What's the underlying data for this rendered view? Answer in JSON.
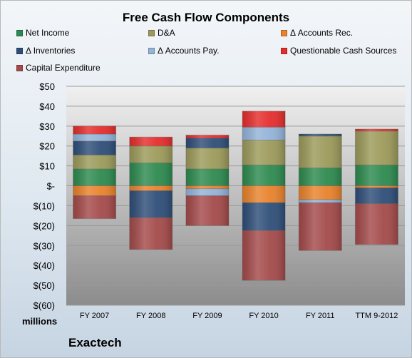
{
  "colors": {
    "net_income": "#2d8a4f",
    "da": "#9c9a5a",
    "accounts_rec": "#e8822c",
    "inventories": "#2e4e78",
    "accounts_pay": "#93b3d8",
    "questionable": "#e52d2d",
    "capex": "#a44a4a"
  },
  "footer": {
    "units": "millions",
    "company": "Exactech"
  },
  "chart_data": {
    "type": "bar",
    "stacked": true,
    "title": "Free Cash Flow Components",
    "xlabel": "",
    "ylabel": "",
    "ylim": [
      -60,
      50
    ],
    "ytick_step": 10,
    "yticks": [
      "$50",
      "$40",
      "$30",
      "$20",
      "$10",
      "$-",
      "$(10)",
      "$(20)",
      "$(30)",
      "$(40)",
      "$(50)",
      "$(60)"
    ],
    "grid": true,
    "legend_position": "top",
    "categories": [
      "FY 2007",
      "FY 2008",
      "FY 2009",
      "FY 2010",
      "FY 2011",
      "TTM 9-2012"
    ],
    "series": [
      {
        "key": "net_income",
        "name": "Net Income",
        "values": [
          8.5,
          11.5,
          8.5,
          10.5,
          9,
          10.5
        ]
      },
      {
        "key": "da",
        "name": "D&A",
        "values": [
          7,
          8.5,
          10.5,
          12.5,
          16,
          17
        ]
      },
      {
        "key": "accounts_rec",
        "name": "Δ Accounts Rec.",
        "values": [
          -5,
          -2.5,
          -1.5,
          -8.5,
          -7,
          -1
        ]
      },
      {
        "key": "inventories",
        "name": "Δ Inventories",
        "values": [
          7,
          -13.5,
          5,
          -14,
          1,
          -8
        ]
      },
      {
        "key": "accounts_pay",
        "name": "Δ Accounts Pay.",
        "values": [
          3.5,
          0,
          -3.5,
          6.5,
          -1.5,
          0
        ]
      },
      {
        "key": "questionable",
        "name": "Questionable Cash Sources",
        "values": [
          4,
          4.5,
          1.5,
          8,
          0,
          1
        ]
      },
      {
        "key": "capex",
        "name": "Capital Expenditure",
        "values": [
          -11.5,
          -16,
          -15,
          -25,
          -24,
          -20.5
        ]
      }
    ]
  }
}
